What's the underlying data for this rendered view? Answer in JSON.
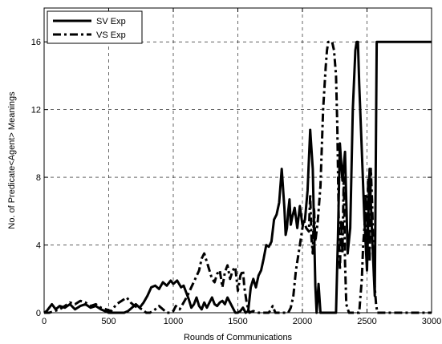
{
  "chart_data": {
    "type": "line",
    "title": "",
    "xlabel": "Rounds of Communications",
    "ylabel": "No. of Predicate<Agent> Meanings",
    "xlim": [
      0,
      3000
    ],
    "ylim": [
      0,
      18
    ],
    "xticks": [
      0,
      500,
      1000,
      1500,
      2000,
      2500,
      3000
    ],
    "yticks": [
      0,
      4,
      8,
      12,
      16
    ],
    "grid": true,
    "legend": "top-left",
    "series": [
      {
        "name": "SV Exp",
        "style": "solid",
        "color": "#000000",
        "points": [
          [
            0,
            0
          ],
          [
            20,
            0.1
          ],
          [
            40,
            0.3
          ],
          [
            60,
            0.5
          ],
          [
            90,
            0.2
          ],
          [
            120,
            0.4
          ],
          [
            160,
            0.3
          ],
          [
            200,
            0.5
          ],
          [
            240,
            0.2
          ],
          [
            280,
            0.4
          ],
          [
            320,
            0.5
          ],
          [
            360,
            0.3
          ],
          [
            400,
            0.4
          ],
          [
            440,
            0.2
          ],
          [
            470,
            0.1
          ],
          [
            500,
            0
          ],
          [
            540,
            0
          ],
          [
            580,
            0
          ],
          [
            620,
            0
          ],
          [
            650,
            0.1
          ],
          [
            680,
            0.3
          ],
          [
            710,
            0.5
          ],
          [
            740,
            0.3
          ],
          [
            770,
            0.6
          ],
          [
            800,
            1.0
          ],
          [
            830,
            1.5
          ],
          [
            860,
            1.6
          ],
          [
            890,
            1.4
          ],
          [
            920,
            1.8
          ],
          [
            950,
            1.6
          ],
          [
            980,
            1.9
          ],
          [
            1000,
            1.7
          ],
          [
            1030,
            1.9
          ],
          [
            1060,
            1.5
          ],
          [
            1080,
            1.6
          ],
          [
            1100,
            1.2
          ],
          [
            1120,
            0.8
          ],
          [
            1140,
            0.3
          ],
          [
            1160,
            0.5
          ],
          [
            1180,
            0.9
          ],
          [
            1200,
            0.4
          ],
          [
            1220,
            0.2
          ],
          [
            1240,
            0.6
          ],
          [
            1260,
            0.3
          ],
          [
            1280,
            0.6
          ],
          [
            1300,
            0.9
          ],
          [
            1320,
            0.5
          ],
          [
            1340,
            0.4
          ],
          [
            1360,
            0.6
          ],
          [
            1380,
            0.7
          ],
          [
            1400,
            0.5
          ],
          [
            1420,
            0.9
          ],
          [
            1440,
            0.6
          ],
          [
            1460,
            0.3
          ],
          [
            1480,
            0
          ],
          [
            1500,
            0
          ],
          [
            1520,
            0.1
          ],
          [
            1540,
            0.3
          ],
          [
            1560,
            0
          ],
          [
            1580,
            0.1
          ],
          [
            1600,
            1.5
          ],
          [
            1620,
            2.0
          ],
          [
            1640,
            1.5
          ],
          [
            1660,
            2.2
          ],
          [
            1680,
            2.5
          ],
          [
            1700,
            3.2
          ],
          [
            1720,
            4.0
          ],
          [
            1740,
            3.9
          ],
          [
            1760,
            4.2
          ],
          [
            1780,
            5.5
          ],
          [
            1800,
            5.8
          ],
          [
            1820,
            6.5
          ],
          [
            1840,
            8.5
          ],
          [
            1860,
            6.2
          ],
          [
            1870,
            4.6
          ],
          [
            1880,
            5.0
          ],
          [
            1890,
            6.0
          ],
          [
            1900,
            6.7
          ],
          [
            1910,
            5.2
          ],
          [
            1920,
            5.6
          ],
          [
            1940,
            6.2
          ],
          [
            1960,
            5.0
          ],
          [
            1980,
            6.3
          ],
          [
            2000,
            5.2
          ],
          [
            2020,
            5.5
          ],
          [
            2040,
            7.2
          ],
          [
            2060,
            10.8
          ],
          [
            2080,
            8.5
          ],
          [
            2100,
            1.6
          ],
          [
            2110,
            0
          ],
          [
            2125,
            1.7
          ],
          [
            2140,
            0
          ],
          [
            2160,
            0
          ],
          [
            2180,
            0
          ],
          [
            2200,
            0
          ],
          [
            2220,
            0
          ],
          [
            2240,
            0
          ],
          [
            2260,
            0
          ],
          [
            2275,
            4.5
          ],
          [
            2290,
            10.0
          ],
          [
            2310,
            7.8
          ],
          [
            2330,
            9.5
          ],
          [
            2350,
            3.5
          ],
          [
            2370,
            5.0
          ],
          [
            2390,
            12.0
          ],
          [
            2410,
            15.5
          ],
          [
            2420,
            16.0
          ],
          [
            2430,
            16.0
          ],
          [
            2440,
            13.5
          ],
          [
            2460,
            9.5
          ],
          [
            2480,
            5.5
          ],
          [
            2500,
            2.5
          ],
          [
            2520,
            8.5
          ],
          [
            2540,
            4.5
          ],
          [
            2560,
            1.0
          ],
          [
            2575,
            16.0
          ],
          [
            2600,
            16.0
          ],
          [
            2700,
            16.0
          ],
          [
            2800,
            16.0
          ],
          [
            2900,
            16.0
          ],
          [
            3000,
            16.0
          ]
        ]
      },
      {
        "name": "VS Exp",
        "style": "dash-dot",
        "color": "#000000",
        "points": [
          [
            0,
            0
          ],
          [
            40,
            0
          ],
          [
            80,
            0.1
          ],
          [
            120,
            0.2
          ],
          [
            160,
            0.4
          ],
          [
            200,
            0.6
          ],
          [
            240,
            0.5
          ],
          [
            280,
            0.7
          ],
          [
            320,
            0.6
          ],
          [
            360,
            0.4
          ],
          [
            400,
            0.5
          ],
          [
            440,
            0.3
          ],
          [
            480,
            0.2
          ],
          [
            520,
            0.1
          ],
          [
            560,
            0.5
          ],
          [
            600,
            0.7
          ],
          [
            640,
            0.9
          ],
          [
            670,
            0.6
          ],
          [
            700,
            0.4
          ],
          [
            730,
            0.3
          ],
          [
            760,
            0.2
          ],
          [
            790,
            0
          ],
          [
            820,
            0
          ],
          [
            860,
            0.2
          ],
          [
            890,
            0.4
          ],
          [
            920,
            0.2
          ],
          [
            950,
            0
          ],
          [
            980,
            0
          ],
          [
            1000,
            0.1
          ],
          [
            1020,
            0.4
          ],
          [
            1050,
            0.2
          ],
          [
            1080,
            0.6
          ],
          [
            1110,
            1.0
          ],
          [
            1140,
            1.5
          ],
          [
            1170,
            2.0
          ],
          [
            1200,
            2.5
          ],
          [
            1220,
            3.2
          ],
          [
            1240,
            3.5
          ],
          [
            1260,
            3.0
          ],
          [
            1280,
            2.5
          ],
          [
            1300,
            2.0
          ],
          [
            1320,
            1.8
          ],
          [
            1340,
            2.3
          ],
          [
            1360,
            2.5
          ],
          [
            1380,
            1.5
          ],
          [
            1400,
            2.4
          ],
          [
            1420,
            2.8
          ],
          [
            1440,
            2.0
          ],
          [
            1460,
            2.5
          ],
          [
            1480,
            2.7
          ],
          [
            1500,
            1.3
          ],
          [
            1520,
            2.2
          ],
          [
            1540,
            2.5
          ],
          [
            1550,
            1.5
          ],
          [
            1570,
            0.5
          ],
          [
            1590,
            0
          ],
          [
            1620,
            0.1
          ],
          [
            1660,
            0
          ],
          [
            1700,
            0
          ],
          [
            1740,
            0
          ],
          [
            1770,
            0.4
          ],
          [
            1790,
            0
          ],
          [
            1820,
            0
          ],
          [
            1860,
            0
          ],
          [
            1890,
            0
          ],
          [
            1910,
            0.3
          ],
          [
            1930,
            1.0
          ],
          [
            1950,
            2.5
          ],
          [
            1970,
            3.5
          ],
          [
            1990,
            4.5
          ],
          [
            2010,
            5.5
          ],
          [
            2030,
            5.0
          ],
          [
            2050,
            4.8
          ],
          [
            2060,
            7.0
          ],
          [
            2070,
            4.4
          ],
          [
            2080,
            3.5
          ],
          [
            2090,
            6.2
          ],
          [
            2100,
            4.2
          ],
          [
            2120,
            5.5
          ],
          [
            2140,
            7.5
          ],
          [
            2160,
            12.0
          ],
          [
            2180,
            14.5
          ],
          [
            2190,
            15.5
          ],
          [
            2200,
            16.0
          ],
          [
            2210,
            16.0
          ],
          [
            2230,
            16.0
          ],
          [
            2245,
            15.5
          ],
          [
            2260,
            14.0
          ],
          [
            2270,
            11.0
          ],
          [
            2280,
            6.0
          ],
          [
            2290,
            2.5
          ],
          [
            2300,
            5.5
          ],
          [
            2310,
            3.5
          ],
          [
            2320,
            8.0
          ],
          [
            2330,
            3.0
          ],
          [
            2340,
            0.5
          ],
          [
            2360,
            0
          ],
          [
            2380,
            0
          ],
          [
            2400,
            0
          ],
          [
            2420,
            0
          ],
          [
            2440,
            0
          ],
          [
            2450,
            1.0
          ],
          [
            2460,
            2.0
          ],
          [
            2470,
            4.0
          ],
          [
            2480,
            5.0
          ],
          [
            2490,
            7.0
          ],
          [
            2500,
            4.5
          ],
          [
            2510,
            8.0
          ],
          [
            2520,
            3.0
          ],
          [
            2530,
            8.5
          ],
          [
            2540,
            6.5
          ],
          [
            2555,
            2.0
          ],
          [
            2570,
            0.5
          ],
          [
            2580,
            0
          ],
          [
            2600,
            0
          ],
          [
            2700,
            0
          ],
          [
            2800,
            0
          ],
          [
            2900,
            0
          ],
          [
            3000,
            0
          ]
        ]
      }
    ]
  }
}
